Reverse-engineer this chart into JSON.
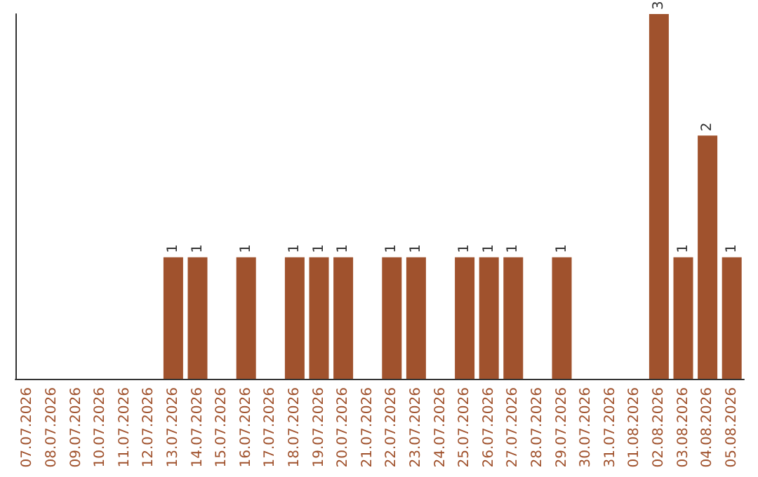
{
  "chart_data": {
    "type": "bar",
    "categories": [
      "07.07.2026",
      "08.07.2026",
      "09.07.2026",
      "10.07.2026",
      "11.07.2026",
      "12.07.2026",
      "13.07.2026",
      "14.07.2026",
      "15.07.2026",
      "16.07.2026",
      "17.07.2026",
      "18.07.2026",
      "19.07.2026",
      "20.07.2026",
      "21.07.2026",
      "22.07.2026",
      "23.07.2026",
      "24.07.2026",
      "25.07.2026",
      "26.07.2026",
      "27.07.2026",
      "28.07.2026",
      "29.07.2026",
      "30.07.2026",
      "31.07.2026",
      "01.08.2026",
      "02.08.2026",
      "03.08.2026",
      "04.08.2026",
      "05.08.2026"
    ],
    "values": [
      0,
      0,
      0,
      0,
      0,
      0,
      1,
      1,
      0,
      1,
      0,
      1,
      1,
      1,
      0,
      1,
      1,
      0,
      1,
      1,
      1,
      0,
      1,
      0,
      0,
      0,
      3,
      1,
      2,
      1
    ],
    "value_labels": [
      null,
      null,
      null,
      null,
      null,
      null,
      "1",
      "1",
      null,
      "1",
      null,
      "1",
      "1",
      "1",
      null,
      "1",
      "1",
      null,
      "1",
      "1",
      "1",
      null,
      "1",
      null,
      null,
      null,
      "3",
      "1",
      "2",
      "1"
    ],
    "color": "#a0522d"
  }
}
